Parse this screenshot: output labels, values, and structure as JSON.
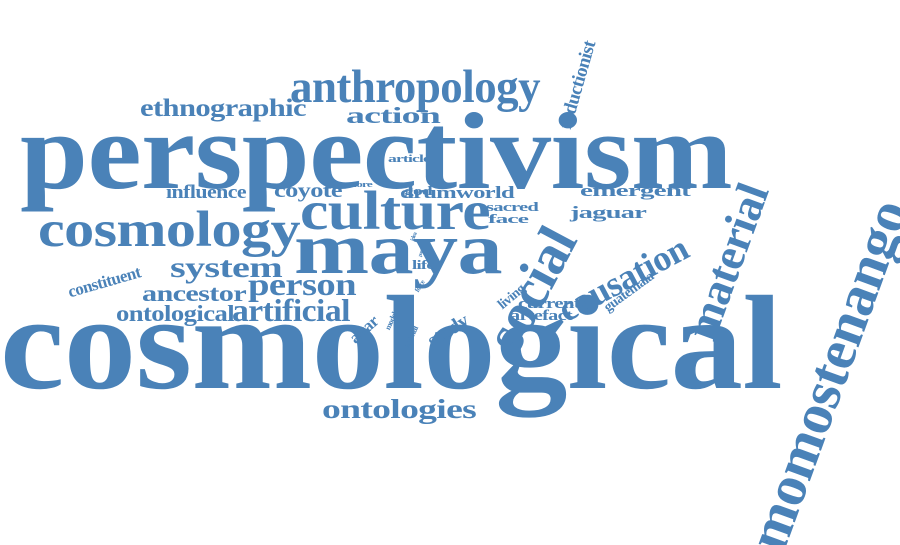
{
  "color": "#4a82b8",
  "words": [
    "cosmological",
    "perspectivism",
    "maya",
    "momostenango",
    "material",
    "social",
    "culture",
    "cosmology",
    "anthropology",
    "causation",
    "ethnographic",
    "action",
    "reductionist",
    "person",
    "system",
    "artificial",
    "ontologies",
    "ontological",
    "ancestor",
    "altar",
    "study",
    "influence",
    "coyote",
    "constituent",
    "emergent",
    "jaguar",
    "guatemala",
    "living",
    "current",
    "artefact",
    "drumworld",
    "god",
    "sacred",
    "face",
    "article",
    "more",
    "idea",
    "life",
    "force",
    "part",
    "model",
    "animal"
  ]
}
